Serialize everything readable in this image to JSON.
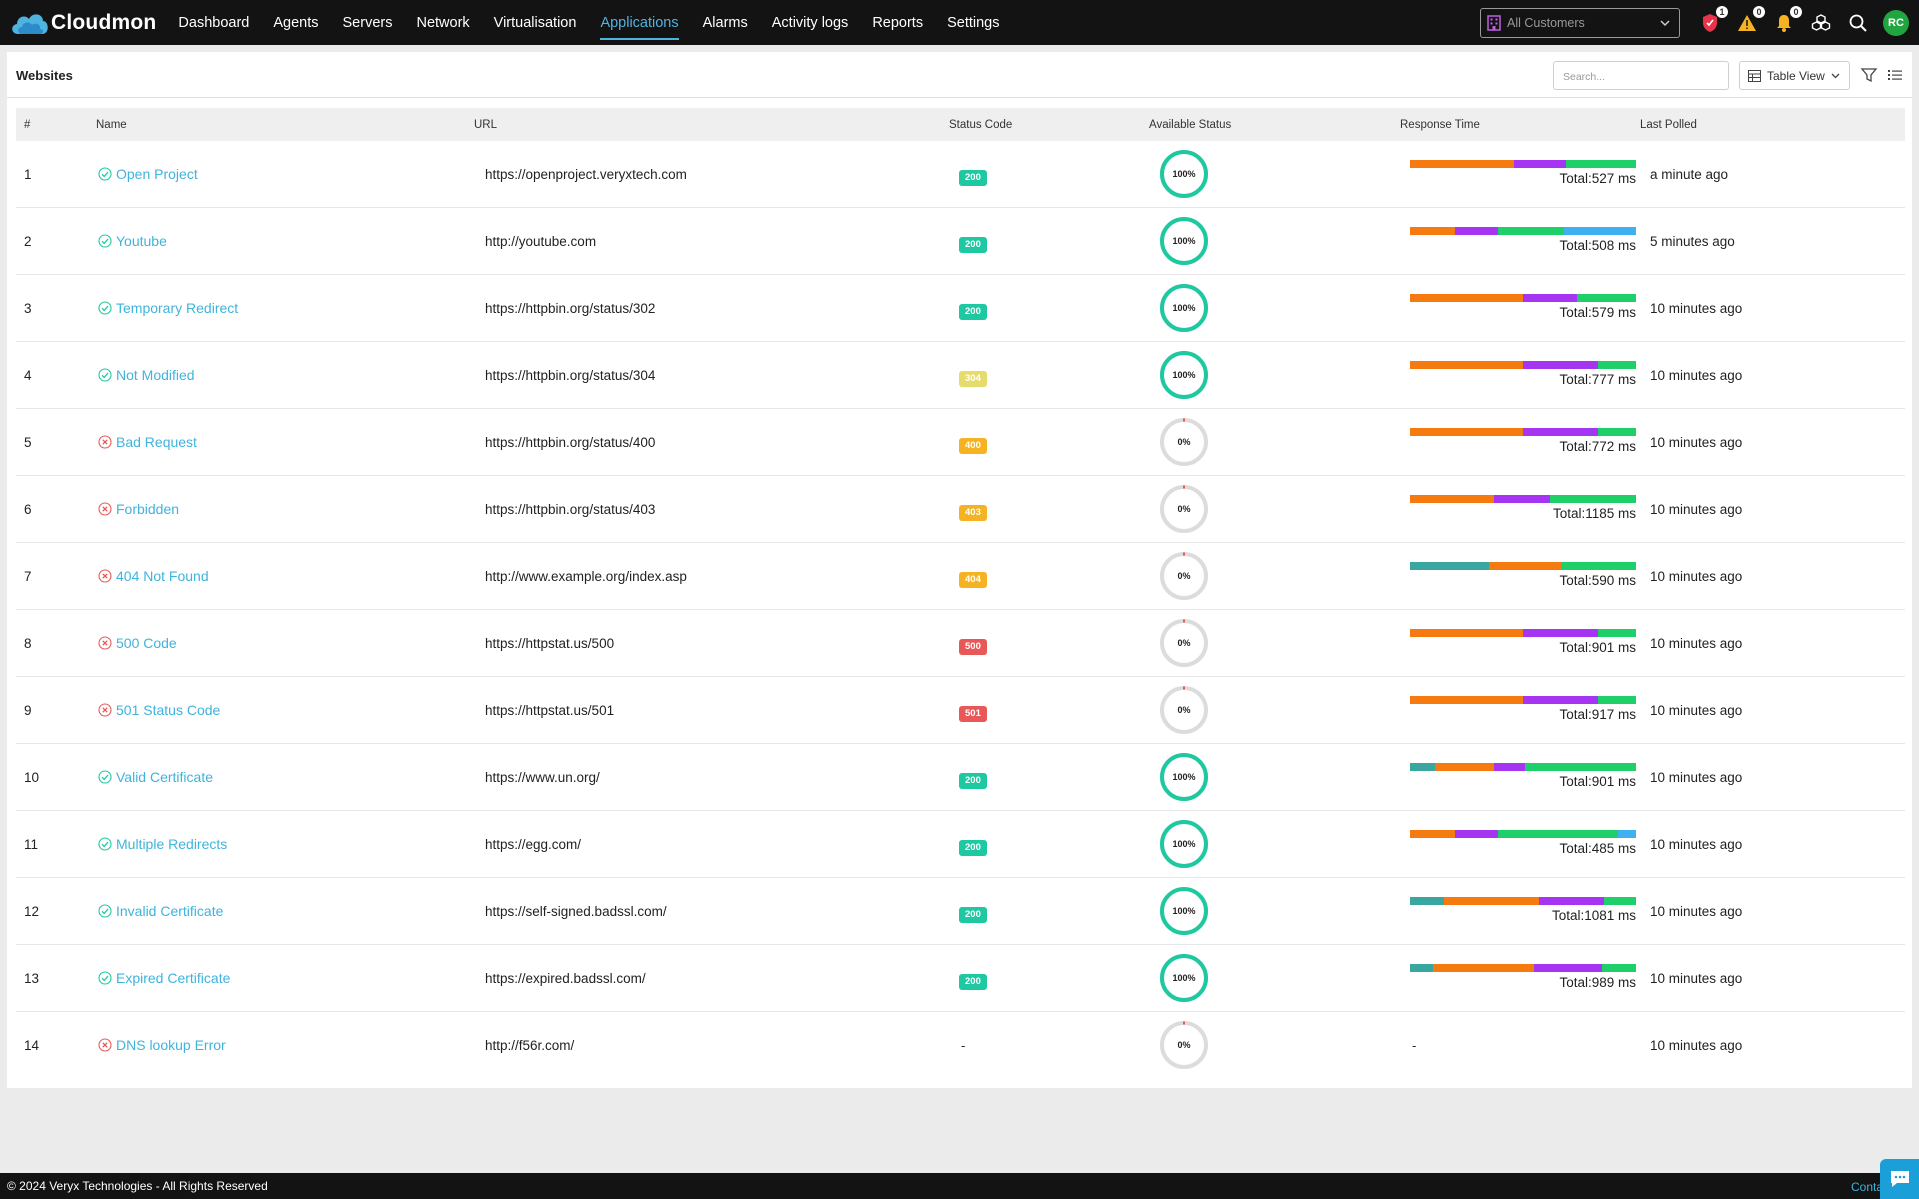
{
  "app": {
    "name": "Cloudmon"
  },
  "nav": {
    "items": [
      {
        "label": "Dashboard",
        "active": false
      },
      {
        "label": "Agents",
        "active": false
      },
      {
        "label": "Servers",
        "active": false
      },
      {
        "label": "Network",
        "active": false
      },
      {
        "label": "Virtualisation",
        "active": false
      },
      {
        "label": "Applications",
        "active": true
      },
      {
        "label": "Alarms",
        "active": false
      },
      {
        "label": "Activity logs",
        "active": false
      },
      {
        "label": "Reports",
        "active": false
      },
      {
        "label": "Settings",
        "active": false
      }
    ]
  },
  "topbar": {
    "customer_select": "All Customers",
    "badges": {
      "shield": "1",
      "warning": "0",
      "bell": "0"
    },
    "avatar_initials": "RC"
  },
  "card": {
    "title": "Websites",
    "search_placeholder": "Search...",
    "view_label": "Table View"
  },
  "table": {
    "headers": [
      "#",
      "Name",
      "URL",
      "Status Code",
      "Available Status",
      "Response Time",
      "Last Polled"
    ],
    "rows": [
      {
        "num": "1",
        "name": "Open Project",
        "ok": true,
        "url": "https://openproject.veryxtech.com",
        "code": "200",
        "code_color": "#1ec8a0",
        "avail": "100%",
        "avail_value": 100,
        "total_label": "Total:",
        "total": "527 ms",
        "segments": [
          {
            "c": "#f57a10",
            "w": 46
          },
          {
            "c": "#a535f0",
            "w": 23
          },
          {
            "c": "#1ecf6a",
            "w": 31
          }
        ],
        "polled": "a minute ago"
      },
      {
        "num": "2",
        "name": "Youtube",
        "ok": true,
        "url": "http://youtube.com",
        "code": "200",
        "code_color": "#1ec8a0",
        "avail": "100%",
        "avail_value": 100,
        "total_label": "Total:",
        "total": "508 ms",
        "segments": [
          {
            "c": "#f57a10",
            "w": 20
          },
          {
            "c": "#a535f0",
            "w": 19
          },
          {
            "c": "#1ecf6a",
            "w": 29
          },
          {
            "c": "#3fb0f0",
            "w": 32
          }
        ],
        "polled": "5 minutes ago"
      },
      {
        "num": "3",
        "name": "Temporary Redirect",
        "ok": true,
        "url": "https://httpbin.org/status/302",
        "code": "200",
        "code_color": "#1ec8a0",
        "avail": "100%",
        "avail_value": 100,
        "total_label": "Total:",
        "total": "579 ms",
        "segments": [
          {
            "c": "#f57a10",
            "w": 50
          },
          {
            "c": "#a535f0",
            "w": 24
          },
          {
            "c": "#1ecf6a",
            "w": 26
          }
        ],
        "polled": "10 minutes ago"
      },
      {
        "num": "4",
        "name": "Not Modified",
        "ok": true,
        "url": "https://httpbin.org/status/304",
        "code": "304",
        "code_color": "#e6dc6e",
        "avail": "100%",
        "avail_value": 100,
        "total_label": "Total:",
        "total": "777 ms",
        "segments": [
          {
            "c": "#f57a10",
            "w": 50
          },
          {
            "c": "#a535f0",
            "w": 33
          },
          {
            "c": "#1ecf6a",
            "w": 17
          }
        ],
        "polled": "10 minutes ago"
      },
      {
        "num": "5",
        "name": "Bad Request",
        "ok": false,
        "url": "https://httpbin.org/status/400",
        "code": "400",
        "code_color": "#f5b324",
        "avail": "0%",
        "avail_value": 0,
        "total_label": "Total:",
        "total": "772 ms",
        "segments": [
          {
            "c": "#f57a10",
            "w": 50
          },
          {
            "c": "#a535f0",
            "w": 33
          },
          {
            "c": "#1ecf6a",
            "w": 17
          }
        ],
        "polled": "10 minutes ago"
      },
      {
        "num": "6",
        "name": "Forbidden",
        "ok": false,
        "url": "https://httpbin.org/status/403",
        "code": "403",
        "code_color": "#f5b324",
        "avail": "0%",
        "avail_value": 0,
        "total_label": "Total:",
        "total": "1185 ms",
        "segments": [
          {
            "c": "#f57a10",
            "w": 37
          },
          {
            "c": "#a535f0",
            "w": 25
          },
          {
            "c": "#1ecf6a",
            "w": 38
          }
        ],
        "polled": "10 minutes ago"
      },
      {
        "num": "7",
        "name": "404 Not Found",
        "ok": false,
        "url": "http://www.example.org/index.asp",
        "code": "404",
        "code_color": "#f5b324",
        "avail": "0%",
        "avail_value": 0,
        "total_label": "Total:",
        "total": "590 ms",
        "segments": [
          {
            "c": "#3aa6a0",
            "w": 35
          },
          {
            "c": "#f57a10",
            "w": 32
          },
          {
            "c": "#1ecf6a",
            "w": 33
          }
        ],
        "polled": "10 minutes ago"
      },
      {
        "num": "8",
        "name": "500 Code",
        "ok": false,
        "url": "https://httpstat.us/500",
        "code": "500",
        "code_color": "#e85858",
        "avail": "0%",
        "avail_value": 0,
        "total_label": "Total:",
        "total": "901 ms",
        "segments": [
          {
            "c": "#f57a10",
            "w": 50
          },
          {
            "c": "#a535f0",
            "w": 33
          },
          {
            "c": "#1ecf6a",
            "w": 17
          }
        ],
        "polled": "10 minutes ago"
      },
      {
        "num": "9",
        "name": "501 Status Code",
        "ok": false,
        "url": "https://httpstat.us/501",
        "code": "501",
        "code_color": "#e85858",
        "avail": "0%",
        "avail_value": 0,
        "total_label": "Total:",
        "total": "917 ms",
        "segments": [
          {
            "c": "#f57a10",
            "w": 50
          },
          {
            "c": "#a535f0",
            "w": 33
          },
          {
            "c": "#1ecf6a",
            "w": 17
          }
        ],
        "polled": "10 minutes ago"
      },
      {
        "num": "10",
        "name": "Valid Certificate",
        "ok": true,
        "url": "https://www.un.org/",
        "code": "200",
        "code_color": "#1ec8a0",
        "avail": "100%",
        "avail_value": 100,
        "total_label": "Total:",
        "total": "901 ms",
        "segments": [
          {
            "c": "#3aa6a0",
            "w": 11
          },
          {
            "c": "#f57a10",
            "w": 26
          },
          {
            "c": "#a535f0",
            "w": 14
          },
          {
            "c": "#1ecf6a",
            "w": 49
          }
        ],
        "polled": "10 minutes ago"
      },
      {
        "num": "11",
        "name": "Multiple Redirects",
        "ok": true,
        "url": "https://egg.com/",
        "code": "200",
        "code_color": "#1ec8a0",
        "avail": "100%",
        "avail_value": 100,
        "total_label": "Total:",
        "total": "485 ms",
        "segments": [
          {
            "c": "#f57a10",
            "w": 20
          },
          {
            "c": "#a535f0",
            "w": 19
          },
          {
            "c": "#1ecf6a",
            "w": 53
          },
          {
            "c": "#3fb0f0",
            "w": 8
          }
        ],
        "polled": "10 minutes ago"
      },
      {
        "num": "12",
        "name": "Invalid Certificate",
        "ok": true,
        "url": "https://self-signed.badssl.com/",
        "code": "200",
        "code_color": "#1ec8a0",
        "avail": "100%",
        "avail_value": 100,
        "total_label": "Total:",
        "total": "1081 ms",
        "segments": [
          {
            "c": "#3aa6a0",
            "w": 15
          },
          {
            "c": "#f57a10",
            "w": 42
          },
          {
            "c": "#a535f0",
            "w": 29
          },
          {
            "c": "#1ecf6a",
            "w": 14
          }
        ],
        "polled": "10 minutes ago"
      },
      {
        "num": "13",
        "name": "Expired Certificate",
        "ok": true,
        "url": "https://expired.badssl.com/",
        "code": "200",
        "code_color": "#1ec8a0",
        "avail": "100%",
        "avail_value": 100,
        "total_label": "Total:",
        "total": "989 ms",
        "segments": [
          {
            "c": "#3aa6a0",
            "w": 10
          },
          {
            "c": "#f57a10",
            "w": 45
          },
          {
            "c": "#a535f0",
            "w": 30
          },
          {
            "c": "#1ecf6a",
            "w": 15
          }
        ],
        "polled": "10 minutes ago"
      },
      {
        "num": "14",
        "name": "DNS lookup Error",
        "ok": false,
        "url": "http://f56r.com/",
        "code": "-",
        "code_color": "",
        "avail": "0%",
        "avail_value": 0,
        "total_label": "",
        "total": "-",
        "segments": [],
        "polled": "10 minutes ago"
      }
    ]
  },
  "footer": {
    "copyright": "© 2024 Veryx Technologies - All Rights Reserved",
    "contact": "Contact Su"
  },
  "colors": {
    "accent": "#4fb3e0",
    "ok": "#1ec8a0",
    "error": "#e85858"
  }
}
